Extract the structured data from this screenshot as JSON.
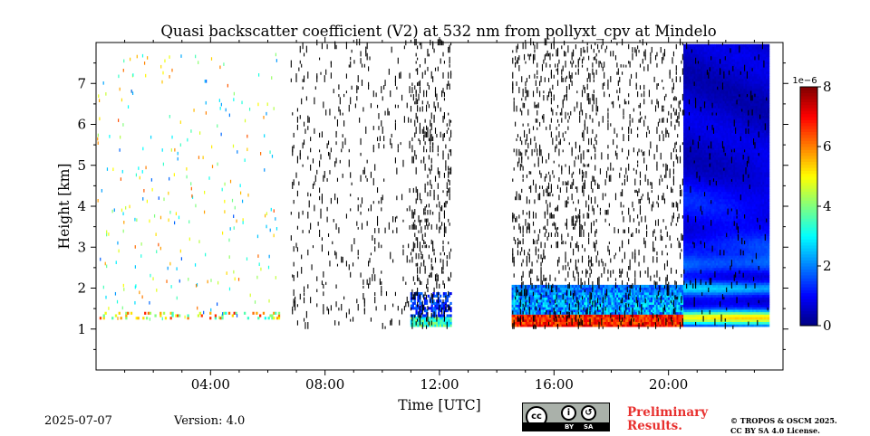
{
  "chart_data": {
    "type": "heatmap",
    "title": "Quasi backscatter coefficient (V2) at 532 nm from pollyxt_cpv at Mindelo",
    "xlabel": "Time [UTC]",
    "ylabel": "Height [km]",
    "x_unit": "hours UTC",
    "xlim": [
      0,
      24
    ],
    "ylim": [
      0,
      8
    ],
    "x_ticks": [
      4,
      8,
      12,
      16,
      20
    ],
    "x_tick_labels": [
      "04:00",
      "08:00",
      "12:00",
      "16:00",
      "20:00"
    ],
    "x_minor_ticks": [
      1,
      2,
      3,
      5,
      6,
      7,
      9,
      10,
      11,
      13,
      14,
      15,
      17,
      18,
      19,
      21,
      22,
      23
    ],
    "y_ticks": [
      1,
      2,
      3,
      4,
      5,
      6,
      7
    ],
    "y_tick_labels": [
      "1",
      "2",
      "3",
      "4",
      "5",
      "6",
      "7"
    ],
    "colorbar": {
      "min": 0,
      "max": 8,
      "ticks": [
        0,
        2,
        4,
        6,
        8
      ],
      "tick_labels": [
        "0",
        "2",
        "4",
        "6",
        "8"
      ],
      "scale_label": "1e−6",
      "colormap": "jet"
    },
    "approx_features": {
      "overlap_bottom_km": 1.0,
      "data_periods_utc": [
        {
          "start": 0.0,
          "end": 6.5,
          "regime": "sparse daytime noise, dense layer near 1.3 km"
        },
        {
          "start": 6.8,
          "end": 12.4,
          "regime": "noisy, low signal"
        },
        {
          "start": 14.5,
          "end": 20.5,
          "regime": "noisy with boundary layer up to 2 km"
        },
        {
          "start": 20.5,
          "end": 23.5,
          "regime": "clean night-time profile"
        }
      ],
      "night_layer_peaks_km": [
        1.3,
        2.0,
        2.6,
        3.0
      ]
    }
  },
  "footer": {
    "date": "2025-07-07",
    "version": "Version: 4.0",
    "preliminary_line1": "Preliminary",
    "preliminary_line2": "Results.",
    "copyright_line1": "© TROPOS & OSCM 2025.",
    "copyright_line2": "CC BY SA 4.0 License."
  },
  "license_badge": {
    "cc": "cc",
    "by": "BY",
    "sa": "SA"
  },
  "colors": {
    "preliminary": "#e8312f",
    "badge_bg": "#aab1aa"
  }
}
